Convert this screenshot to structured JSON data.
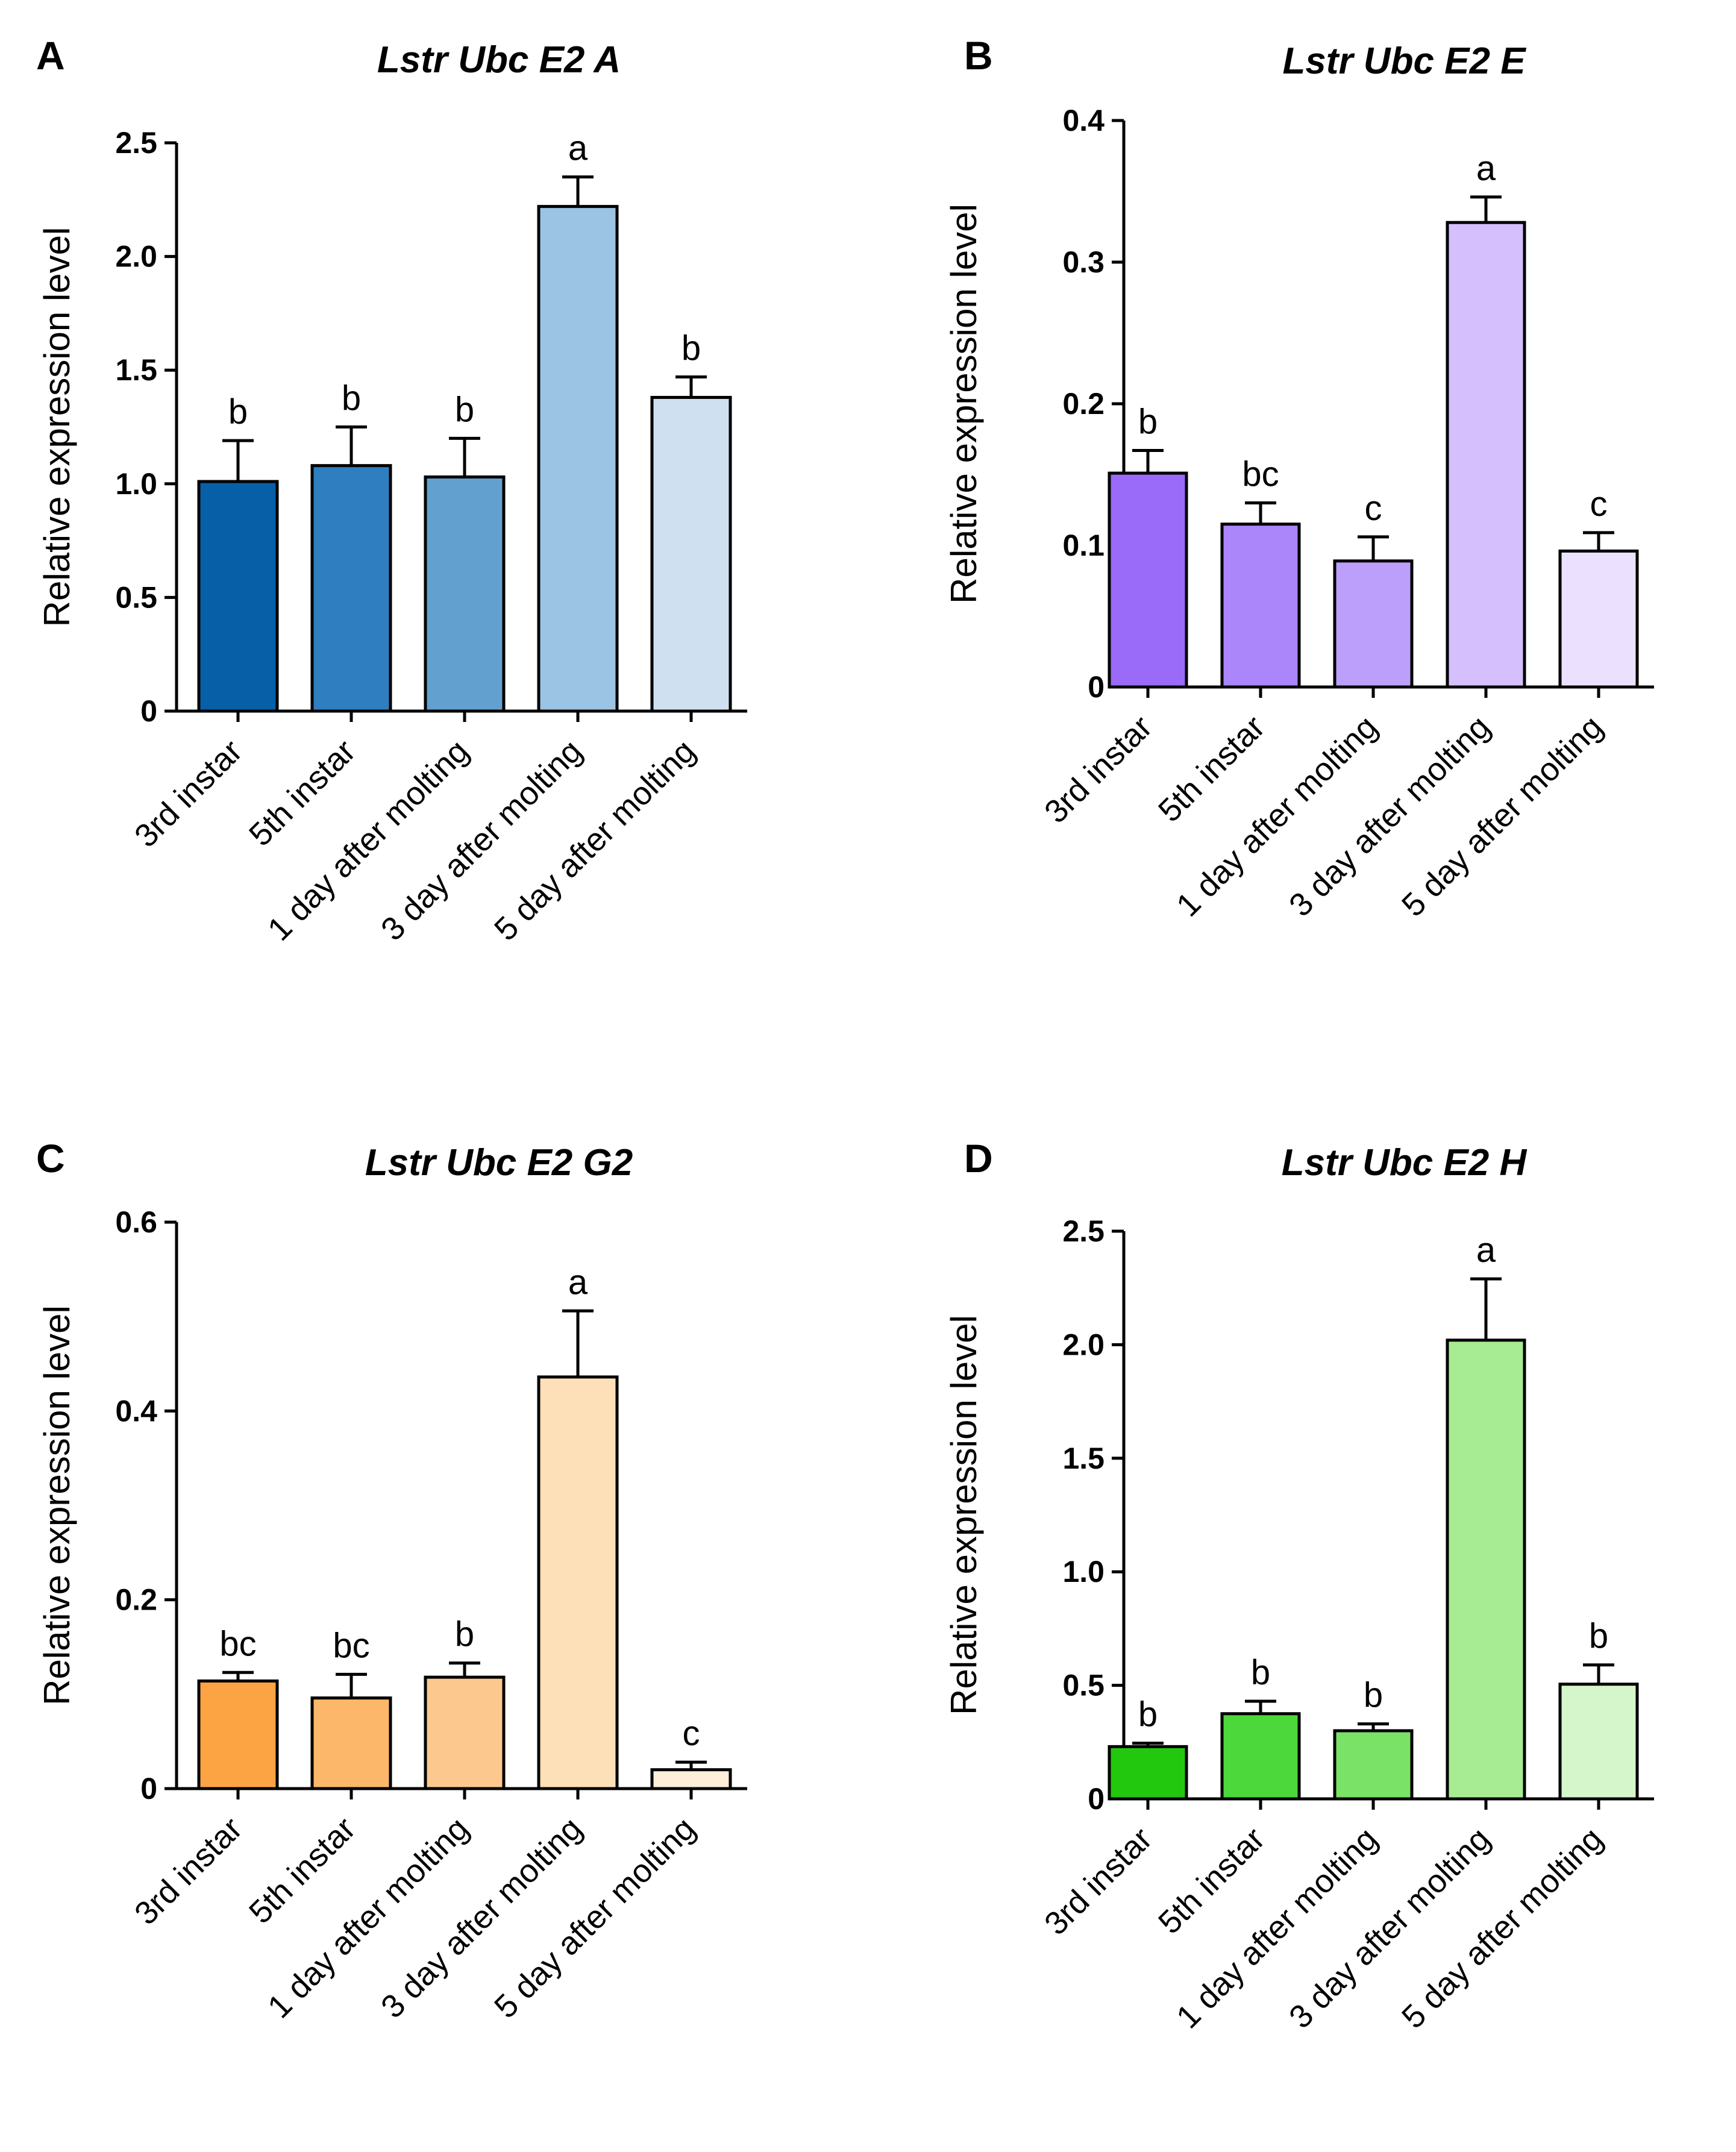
{
  "chart_data": [
    {
      "panel": "A",
      "type": "bar",
      "title": "Lstr Ubc E2 A",
      "ylabel": "Relative expression level",
      "xlabel": "",
      "ylim": [
        0,
        2.5
      ],
      "yticks": [
        0,
        0.5,
        1.0,
        1.5,
        2.0,
        2.5
      ],
      "ytick_labels": [
        "0",
        "0.5",
        "1.0",
        "1.5",
        "2.0",
        "2.5"
      ],
      "categories": [
        "3rd instar",
        "5th instar",
        "1 day after molting",
        "3 day after molting",
        "5 day after molting"
      ],
      "values": [
        1.01,
        1.08,
        1.03,
        2.22,
        1.38
      ],
      "errors": [
        0.18,
        0.17,
        0.17,
        0.13,
        0.09
      ],
      "significance": [
        "b",
        "b",
        "b",
        "a",
        "b"
      ],
      "colors": [
        "#075fa8",
        "#2f7fc0",
        "#62a0d0",
        "#9bc3e3",
        "#cfe1f1"
      ]
    },
    {
      "panel": "B",
      "type": "bar",
      "title": "Lstr Ubc E2 E",
      "ylabel": "Relative expression level",
      "xlabel": "",
      "ylim": [
        0,
        0.4
      ],
      "yticks": [
        0,
        0.1,
        0.2,
        0.3,
        0.4
      ],
      "ytick_labels": [
        "0",
        "0.1",
        "0.2",
        "0.3",
        "0.4"
      ],
      "categories": [
        "3rd instar",
        "5th instar",
        "1 day after molting",
        "3 day after molting",
        "5 day after molting"
      ],
      "values": [
        0.151,
        0.115,
        0.089,
        0.328,
        0.096
      ],
      "errors": [
        0.016,
        0.015,
        0.017,
        0.018,
        0.013
      ],
      "significance": [
        "b",
        "bc",
        "c",
        "a",
        "c"
      ],
      "colors": [
        "#9a6af8",
        "#ab85fa",
        "#bc9ffa",
        "#d5bffc",
        "#ebe1fe"
      ]
    },
    {
      "panel": "C",
      "type": "bar",
      "title": "Lstr Ubc E2 G2",
      "ylabel": "Relative expression level",
      "xlabel": "",
      "ylim": [
        0,
        0.6
      ],
      "yticks": [
        0,
        0.2,
        0.4,
        0.6
      ],
      "ytick_labels": [
        "0",
        "0.2",
        "0.4",
        "0.6"
      ],
      "categories": [
        "3rd instar",
        "5th instar",
        "1 day after molting",
        "3 day after molting",
        "5 day after molting"
      ],
      "values": [
        0.114,
        0.096,
        0.118,
        0.436,
        0.02
      ],
      "errors": [
        0.009,
        0.025,
        0.015,
        0.07,
        0.008
      ],
      "significance": [
        "bc",
        "bc",
        "b",
        "a",
        "c"
      ],
      "colors": [
        "#fca444",
        "#fdb76a",
        "#fdc88e",
        "#fde0b8",
        "#feefd9"
      ]
    },
    {
      "panel": "D",
      "type": "bar",
      "title": "Lstr Ubc E2 H",
      "ylabel": "Relative expression level",
      "xlabel": "",
      "ylim": [
        0,
        2.5
      ],
      "yticks": [
        0,
        0.5,
        1.0,
        1.5,
        2.0,
        2.5
      ],
      "ytick_labels": [
        "0",
        "0.5",
        "1.0",
        "1.5",
        "2.0",
        "2.5"
      ],
      "categories": [
        "3rd instar",
        "5th instar",
        "1 day after molting",
        "3 day after molting",
        "5 day after molting"
      ],
      "values": [
        0.23,
        0.375,
        0.3,
        2.02,
        0.505
      ],
      "errors": [
        0.015,
        0.055,
        0.03,
        0.27,
        0.085
      ],
      "significance": [
        "b",
        "b",
        "b",
        "a",
        "b"
      ],
      "colors": [
        "#22c80e",
        "#4cd83a",
        "#7ae266",
        "#a7ec93",
        "#d4f6ca"
      ]
    }
  ]
}
